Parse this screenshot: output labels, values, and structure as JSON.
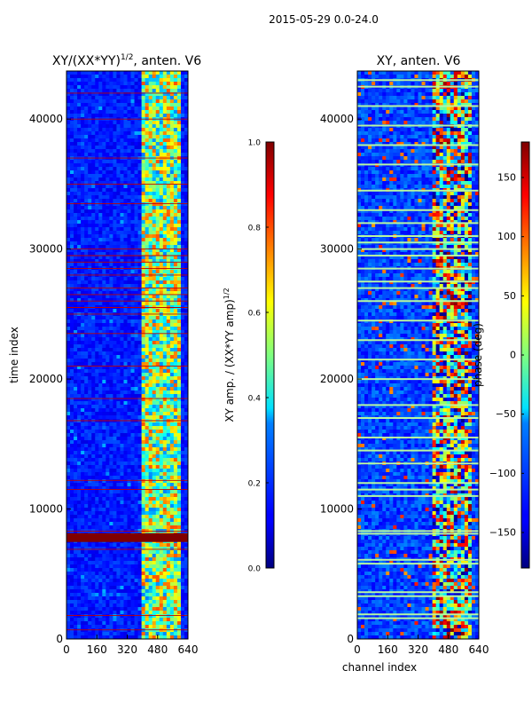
{
  "figure_title": "2015-05-29 0.0-24.0",
  "chart_data": [
    {
      "type": "heatmap",
      "title": "XY/(XX*YY)^1/2, anten. V6",
      "title_main": "XY/(XX*YY)",
      "title_sup": "1/2",
      "title_tail": ", anten. V6",
      "xlabel": "",
      "ylabel": "time index",
      "xlim": [
        0,
        640
      ],
      "ylim": [
        0,
        43700
      ],
      "xticks": [
        0,
        160,
        320,
        480,
        640
      ],
      "yticks": [
        0,
        10000,
        20000,
        30000,
        40000
      ],
      "colorbar": {
        "label": "XY amp. / (XX*YY amp)^1/2",
        "label_main": "XY amp. / (XX*YY amp)",
        "label_sup": "1/2",
        "range": [
          0.0,
          1.0
        ],
        "ticks": [
          "0.0",
          "0.2",
          "0.4",
          "0.6",
          "0.8",
          "1.0"
        ],
        "tick_values": [
          0.0,
          0.2,
          0.4,
          0.6,
          0.8,
          1.0
        ],
        "colormap": "jet"
      },
      "bright_band_channels": [
        390,
        600
      ],
      "saturated_rows": [
        7600,
        7800,
        8000
      ],
      "flagged_rows_approx": [
        700,
        1800,
        6900,
        8300,
        11500,
        12200,
        16800,
        18500,
        21000,
        23500,
        25000,
        25500,
        26000,
        26500,
        27000,
        28000,
        28500,
        29000,
        29500,
        30000,
        33500,
        35000,
        37000,
        40000,
        42000
      ]
    },
    {
      "type": "heatmap",
      "title": "XY, anten. V6",
      "xlabel": "channel index",
      "ylabel": "",
      "xlim": [
        0,
        640
      ],
      "ylim": [
        0,
        43700
      ],
      "xticks": [
        0,
        160,
        320,
        480,
        640
      ],
      "yticks": [
        0,
        10000,
        20000,
        30000,
        40000
      ],
      "colorbar": {
        "label": "phase (deg)",
        "range": [
          -180,
          180
        ],
        "ticks": [
          "−150",
          "−100",
          "−50",
          "0",
          "50",
          "100",
          "150"
        ],
        "tick_values": [
          -150,
          -100,
          -50,
          0,
          50,
          100,
          150
        ],
        "colormap": "jet"
      },
      "bright_band_channels": [
        390,
        600
      ],
      "flagged_rows_approx": [
        1600,
        1900,
        3300,
        3600,
        5800,
        6100,
        8100,
        8300,
        11000,
        11500,
        12000,
        13500,
        14500,
        15500,
        17000,
        18000,
        20000,
        21500,
        23000,
        24500,
        26000,
        27000,
        27500,
        28500,
        29500,
        30000,
        30500,
        31000,
        32000,
        33000,
        34500,
        36500,
        38000,
        39500,
        41000,
        42500,
        43000
      ]
    }
  ]
}
